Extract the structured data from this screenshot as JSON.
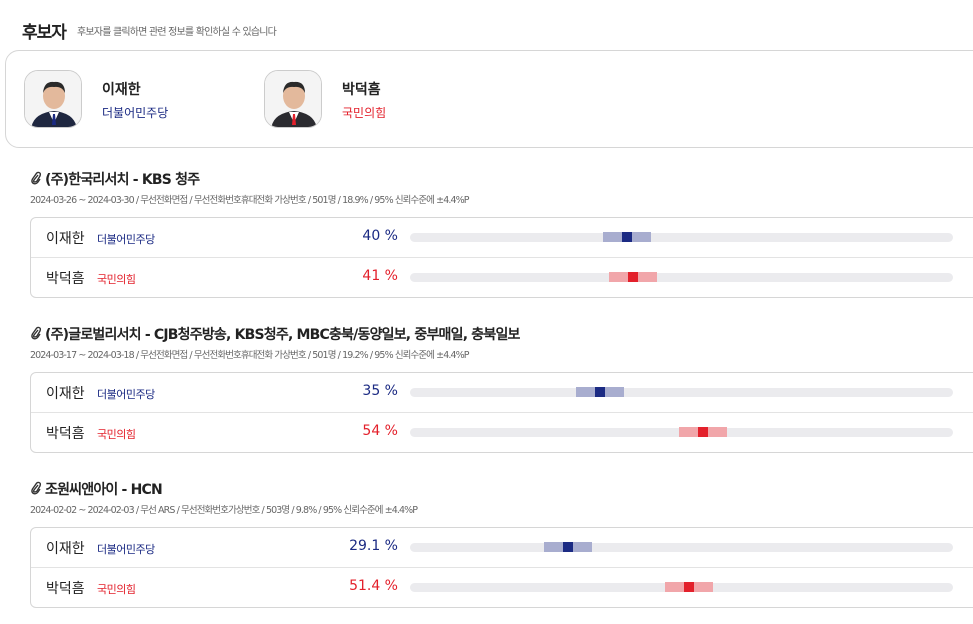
{
  "header": {
    "title": "후보자",
    "subtitle": "후보자를 클릭하면 관련 정보를 확인하실 수 있습니다"
  },
  "candidates": [
    {
      "name": "이재한",
      "party": "더불어민주당",
      "color": "#1b2a83",
      "band_color": "#a8adcf"
    },
    {
      "name": "박덕흠",
      "party": "국민의힘",
      "color": "#e3202b",
      "band_color": "#f1a6aa"
    }
  ],
  "polls": [
    {
      "title": "(주)한국리서치 - KBS 청주",
      "details": "2024-03-26 ~ 2024-03-30 / 무선전화면접 / 무선전화번호휴대전화 가상번호 / 501명 / 18.9% / 95% 신뢰수준에 ±4.4%P",
      "margin": 4.4,
      "results": [
        {
          "name": "이재한",
          "party": "더불어민주당",
          "value": 40,
          "value_label": "40 %"
        },
        {
          "name": "박덕흠",
          "party": "국민의힘",
          "value": 41,
          "value_label": "41 %"
        }
      ]
    },
    {
      "title": "(주)글로벌리서치 - CJB청주방송, KBS청주, MBC충북/동양일보, 중부매일, 충북일보",
      "details": "2024-03-17 ~ 2024-03-18 / 무선전화면접 / 무선전화번호휴대전화 가상번호 / 501명 / 19.2% / 95% 신뢰수준에 ±4.4%P",
      "margin": 4.4,
      "results": [
        {
          "name": "이재한",
          "party": "더불어민주당",
          "value": 35,
          "value_label": "35 %"
        },
        {
          "name": "박덕흠",
          "party": "국민의힘",
          "value": 54,
          "value_label": "54 %"
        }
      ]
    },
    {
      "title": "조원씨앤아이 - HCN",
      "details": "2024-02-02 ~ 2024-02-03 / 무선 ARS / 무선전화번호가상번호 / 503명 / 9.8% / 95% 신뢰수준에 ±4.4%P",
      "margin": 4.4,
      "results": [
        {
          "name": "이재한",
          "party": "더불어민주당",
          "value": 29.1,
          "value_label": "29.1 %"
        },
        {
          "name": "박덕흠",
          "party": "국민의힘",
          "value": 51.4,
          "value_label": "51.4 %"
        }
      ]
    }
  ]
}
